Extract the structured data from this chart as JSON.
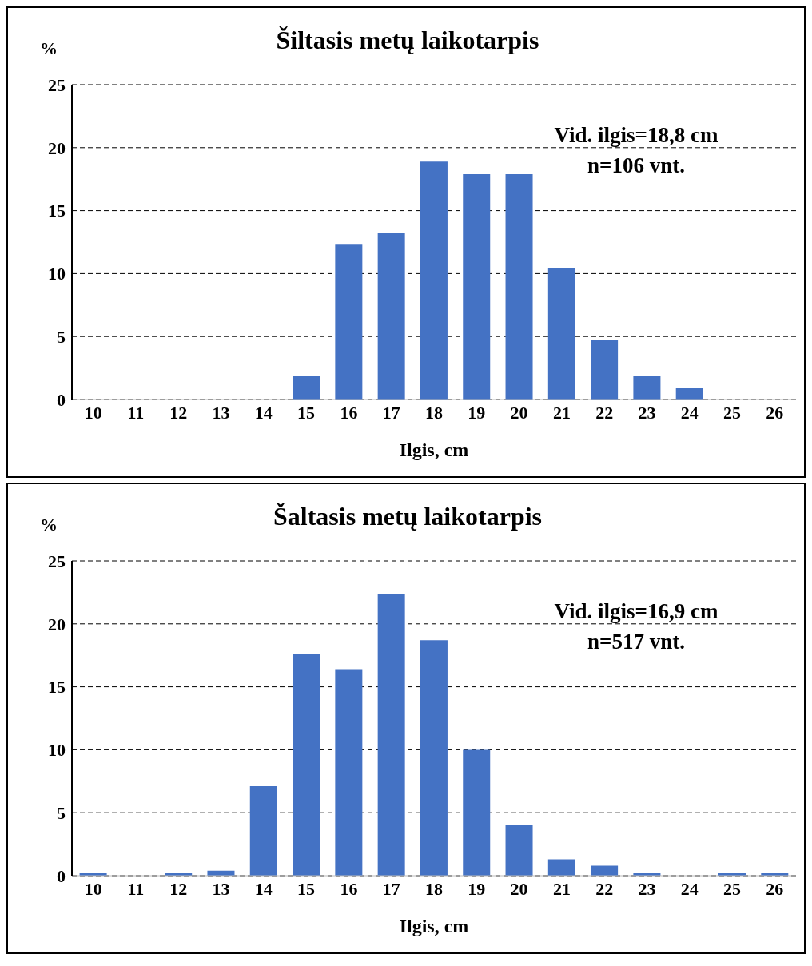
{
  "chart_data": [
    {
      "type": "bar",
      "title": "Šiltasis metų laikotarpis",
      "xlabel": "Ilgis, cm",
      "ylabel": "%",
      "categories": [
        "10",
        "11",
        "12",
        "13",
        "14",
        "15",
        "16",
        "17",
        "18",
        "19",
        "20",
        "21",
        "22",
        "23",
        "24",
        "25",
        "26"
      ],
      "values": [
        0,
        0,
        0,
        0,
        0,
        1.9,
        12.3,
        13.2,
        18.9,
        17.9,
        17.9,
        10.4,
        4.7,
        1.9,
        0.9,
        0,
        0
      ],
      "color": "#4472c4",
      "ylim": [
        0,
        25
      ],
      "yticks": [
        0,
        5,
        10,
        15,
        20,
        25
      ],
      "grid": "y",
      "annotations": [
        "Vid. ilgis=18,8 cm",
        "n=106 vnt."
      ]
    },
    {
      "type": "bar",
      "title": "Šaltasis metų laikotarpis",
      "xlabel": "Ilgis, cm",
      "ylabel": "%",
      "categories": [
        "10",
        "11",
        "12",
        "13",
        "14",
        "15",
        "16",
        "17",
        "18",
        "19",
        "20",
        "21",
        "22",
        "23",
        "24",
        "25",
        "26"
      ],
      "values": [
        0.2,
        0,
        0.2,
        0.4,
        7.1,
        17.6,
        16.4,
        22.4,
        18.7,
        10.0,
        4.0,
        1.3,
        0.8,
        0.2,
        0,
        0.2,
        0.2
      ],
      "color": "#4472c4",
      "ylim": [
        0,
        25
      ],
      "yticks": [
        0,
        5,
        10,
        15,
        20,
        25
      ],
      "grid": "y",
      "annotations": [
        "Vid. ilgis=16,9 cm",
        "n=517 vnt."
      ]
    }
  ]
}
